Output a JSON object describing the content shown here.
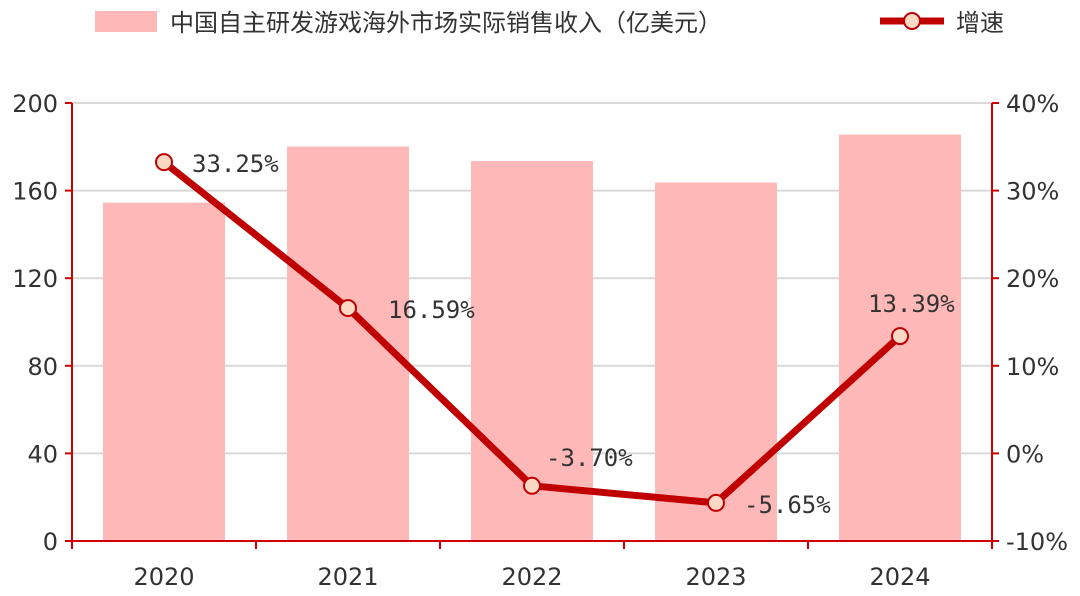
{
  "chart_data": {
    "type": "bar+line",
    "categories": [
      "2020",
      "2021",
      "2022",
      "2023",
      "2024"
    ],
    "series": [
      {
        "name": "中国自主研发游戏海外市场实际销售收入（亿美元）",
        "type": "bar",
        "axis": "left",
        "values": [
          154.5,
          180.1,
          173.5,
          163.7,
          185.6
        ],
        "color": "#ffb8b8"
      },
      {
        "name": "增速",
        "type": "line",
        "axis": "right",
        "values": [
          33.25,
          16.59,
          -3.7,
          -5.65,
          13.39
        ],
        "labels": [
          "33.25%",
          "16.59%",
          "-3.70%",
          "-5.65%",
          "13.39%"
        ],
        "color": "#c00000",
        "marker_fill": "#fbd8c4"
      }
    ],
    "y_left": {
      "ylim": [
        0,
        200
      ],
      "ticks": [
        "0",
        "40",
        "80",
        "120",
        "160",
        "200"
      ]
    },
    "y_right": {
      "ylim": [
        -10,
        40
      ],
      "ticks": [
        "-10%",
        "0%",
        "10%",
        "20%",
        "30%",
        "40%"
      ]
    },
    "grid": true,
    "legend_position": "top",
    "axis_color": "#d00000",
    "grid_color": "#d9d9d9"
  }
}
